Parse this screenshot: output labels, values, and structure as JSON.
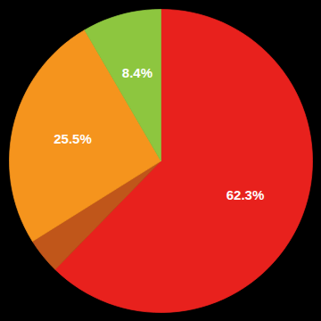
{
  "chart_data": {
    "type": "pie",
    "values": [
      62.3,
      3.8,
      25.5,
      8.4
    ],
    "value_labels": [
      "62.3%",
      null,
      "25.5%",
      "8.4%"
    ],
    "colors": [
      "#e8211d",
      "#c0561a",
      "#f5941d",
      "#8dc63f"
    ],
    "data_labels": true
  }
}
